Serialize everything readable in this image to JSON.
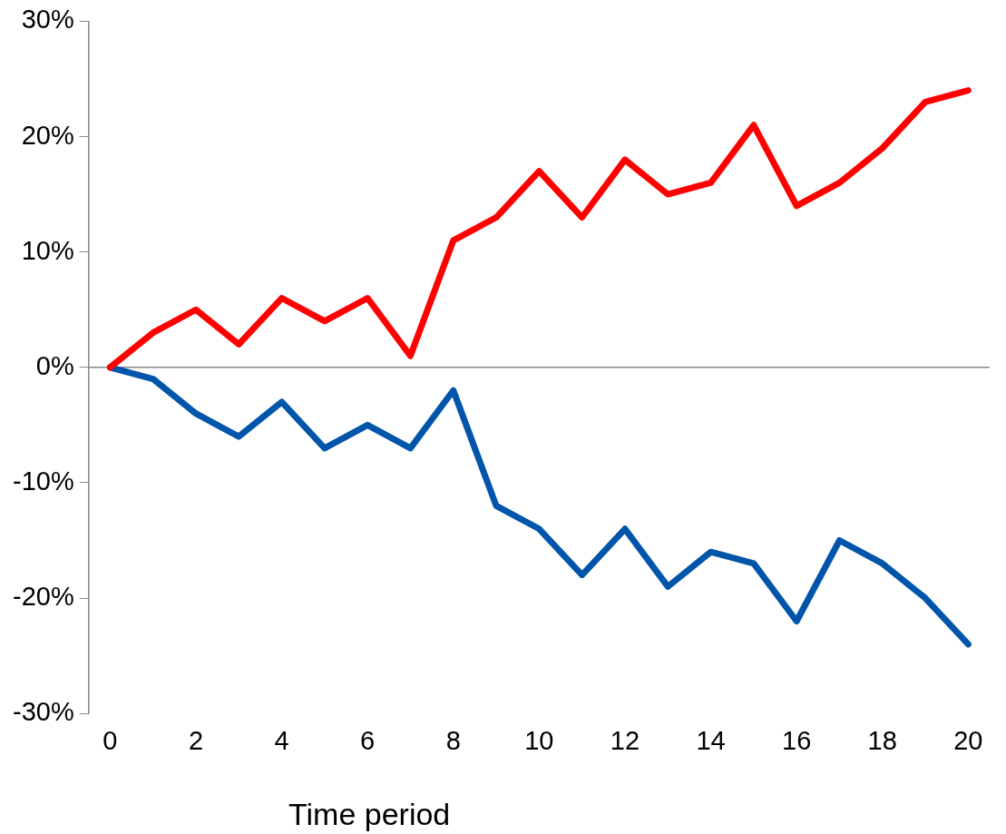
{
  "chart_data": {
    "type": "line",
    "xlabel": "Time period",
    "x": [
      0,
      1,
      2,
      3,
      4,
      5,
      6,
      7,
      8,
      9,
      10,
      11,
      12,
      13,
      14,
      15,
      16,
      17,
      18,
      19,
      20
    ],
    "series": [
      {
        "color": "#ff0000",
        "values": [
          0,
          3,
          5,
          2,
          6,
          4,
          6,
          1,
          11,
          13,
          17,
          13,
          18,
          15,
          16,
          21,
          14,
          16,
          19,
          23,
          24
        ]
      },
      {
        "color": "#0055aa",
        "values": [
          0,
          -1,
          -4,
          -6,
          -3,
          -7,
          -5,
          -7,
          -2,
          -12,
          -14,
          -18,
          -14,
          -19,
          -16,
          -17,
          -22,
          -15,
          -17,
          -20,
          -24
        ]
      }
    ],
    "xlim": [
      -0.5,
      20.5
    ],
    "xticks": [
      0,
      2,
      4,
      6,
      8,
      10,
      12,
      14,
      16,
      18,
      20
    ],
    "ylim": [
      -30,
      30
    ],
    "yticks": [
      {
        "value": -30,
        "label": "-30%"
      },
      {
        "value": -20,
        "label": "-20%"
      },
      {
        "value": -10,
        "label": "-10%"
      },
      {
        "value": 0,
        "label": "0%"
      },
      {
        "value": 10,
        "label": "10%"
      },
      {
        "value": 20,
        "label": "20%"
      },
      {
        "value": 30,
        "label": "30%"
      }
    ],
    "ref_lines": [
      {
        "axis": "y",
        "value": 0,
        "color": "#888888"
      }
    ],
    "grid": false,
    "legend": false,
    "marker": "none",
    "line_style": "solid"
  }
}
